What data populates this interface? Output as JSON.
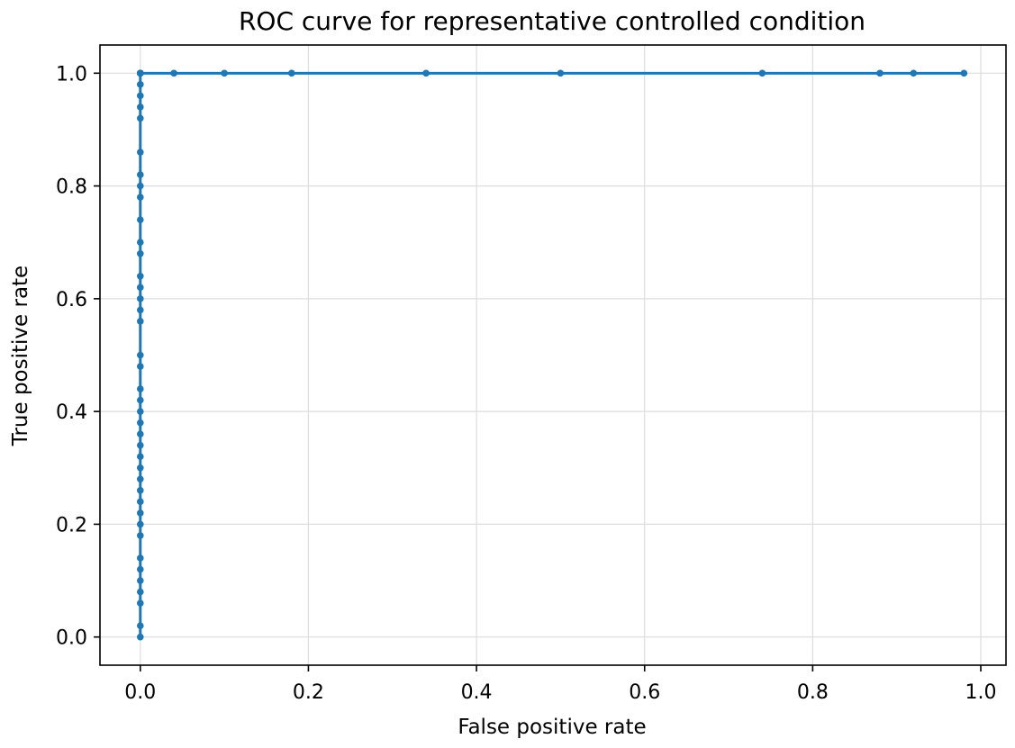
{
  "chart_data": {
    "type": "line",
    "title": "ROC curve for representative controlled condition",
    "xlabel": "False positive rate",
    "ylabel": "True positive rate",
    "xlim": [
      -0.048,
      1.03
    ],
    "ylim": [
      -0.05,
      1.05
    ],
    "x_ticks": [
      0.0,
      0.2,
      0.4,
      0.6,
      0.8,
      1.0
    ],
    "x_tick_labels": [
      "0.0",
      "0.2",
      "0.4",
      "0.6",
      "0.8",
      "1.0"
    ],
    "y_ticks": [
      0.0,
      0.2,
      0.4,
      0.6,
      0.8,
      1.0
    ],
    "y_tick_labels": [
      "0.0",
      "0.2",
      "0.4",
      "0.6",
      "0.8",
      "1.0"
    ],
    "grid": true,
    "line_color": "#1f77b4",
    "series": [
      {
        "x": [
          0,
          0,
          0,
          0,
          0,
          0,
          0,
          0,
          0,
          0,
          0,
          0,
          0,
          0,
          0,
          0,
          0,
          0,
          0,
          0,
          0,
          0,
          0,
          0,
          0,
          0,
          0,
          0,
          0,
          0,
          0,
          0,
          0,
          0,
          0,
          0,
          0,
          0,
          0,
          0,
          0,
          0,
          0,
          0,
          0,
          0.04,
          0.1,
          0.18,
          0.34,
          0.5,
          0.74,
          0.88,
          0.92,
          0.98
        ],
        "y": [
          0.0,
          0.02,
          0.06,
          0.08,
          0.1,
          0.12,
          0.14,
          0.18,
          0.2,
          0.22,
          0.24,
          0.26,
          0.28,
          0.3,
          0.32,
          0.34,
          0.36,
          0.38,
          0.4,
          0.42,
          0.44,
          0.48,
          0.5,
          0.56,
          0.58,
          0.6,
          0.62,
          0.64,
          0.68,
          0.7,
          0.74,
          0.78,
          0.8,
          0.82,
          0.86,
          0.92,
          0.94,
          0.96,
          0.98,
          1.0,
          1.0,
          1.0,
          1.0,
          1.0,
          1.0,
          1.0,
          1.0,
          1.0,
          1.0,
          1.0,
          1.0,
          1.0,
          1.0,
          1.0
        ]
      }
    ]
  }
}
